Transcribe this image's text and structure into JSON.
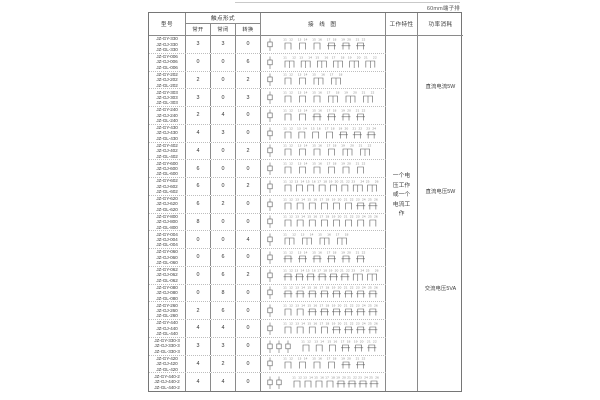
{
  "page": {
    "top_note": "60mm端子排"
  },
  "table": {
    "headers": {
      "model": "型号",
      "contact_form": "触点形式",
      "no": "常开",
      "nc": "常闭",
      "co": "转换",
      "wiring": "接 线 图",
      "characteristics": "工作特性",
      "power": "功率消耗"
    },
    "characteristics_note": "一个电压工作或一个电流工作",
    "power_notes": [
      "直流电流5W",
      "直流电压5W",
      "交流电压5VA"
    ],
    "wiring_legend": {
      "terminal_numbering_start": 11,
      "coil_symbol": "square-coil"
    },
    "rows": [
      {
        "models": [
          "JZ-GY-330",
          "JZ-GJ-330",
          "JZ-GL-330"
        ],
        "no": 3,
        "nc": 3,
        "co": 0,
        "coils": 1
      },
      {
        "models": [
          "JZ-GY-006",
          "JZ-GJ-006",
          "JZ-GL-006"
        ],
        "no": 0,
        "nc": 0,
        "co": 6,
        "coils": 1
      },
      {
        "models": [
          "JZ-GY-202",
          "JZ-GJ-202",
          "JZ-GL-202"
        ],
        "no": 2,
        "nc": 0,
        "co": 2,
        "coils": 1
      },
      {
        "models": [
          "JZ-GY-303",
          "JZ-GJ-303",
          "JZ-GL-303"
        ],
        "no": 3,
        "nc": 0,
        "co": 3,
        "coils": 1
      },
      {
        "models": [
          "JZ-GY-240",
          "JZ-GJ-240",
          "JZ-GL-240"
        ],
        "no": 2,
        "nc": 4,
        "co": 0,
        "coils": 1
      },
      {
        "models": [
          "JZ-GY-430",
          "JZ-GJ-430",
          "JZ-GL-430"
        ],
        "no": 4,
        "nc": 3,
        "co": 0,
        "coils": 1
      },
      {
        "models": [
          "JZ-GY-402",
          "JZ-GJ-402",
          "JZ-GL-402"
        ],
        "no": 4,
        "nc": 0,
        "co": 2,
        "coils": 1
      },
      {
        "models": [
          "JZ-GY-600",
          "JZ-GJ-600",
          "JZ-GL-600"
        ],
        "no": 6,
        "nc": 0,
        "co": 0,
        "coils": 1
      },
      {
        "models": [
          "JZ-GY-602",
          "JZ-GJ-602",
          "JZ-GL-602"
        ],
        "no": 6,
        "nc": 0,
        "co": 2,
        "coils": 1
      },
      {
        "models": [
          "JZ-GY-620",
          "JZ-GJ-620",
          "JZ-GL-620"
        ],
        "no": 6,
        "nc": 2,
        "co": 0,
        "coils": 1
      },
      {
        "models": [
          "JZ-GY-800",
          "JZ-GJ-800",
          "JZ-GL-800"
        ],
        "no": 8,
        "nc": 0,
        "co": 0,
        "coils": 1
      },
      {
        "models": [
          "JZ-GY-004",
          "JZ-GJ-004",
          "JZ-GL-004"
        ],
        "no": 0,
        "nc": 0,
        "co": 4,
        "coils": 1
      },
      {
        "models": [
          "JZ-GY-060",
          "JZ-GJ-060",
          "JZ-GL-060"
        ],
        "no": 0,
        "nc": 6,
        "co": 0,
        "coils": 1
      },
      {
        "models": [
          "JZ-GY-062",
          "JZ-GJ-062",
          "JZ-GL-062"
        ],
        "no": 0,
        "nc": 6,
        "co": 2,
        "coils": 1
      },
      {
        "models": [
          "JZ-GY-080",
          "JZ-GJ-080",
          "JZ-GL-080"
        ],
        "no": 0,
        "nc": 8,
        "co": 0,
        "coils": 1
      },
      {
        "models": [
          "JZ-GY-260",
          "JZ-GJ-260",
          "JZ-GL-260"
        ],
        "no": 2,
        "nc": 6,
        "co": 0,
        "coils": 1
      },
      {
        "models": [
          "JZ-GY-440",
          "JZ-GJ-440",
          "JZ-GL-440"
        ],
        "no": 4,
        "nc": 4,
        "co": 0,
        "coils": 1
      },
      {
        "models": [
          "JZ-GY-330-3",
          "JZ-GJ-330-3",
          "JZ-GL-330-3"
        ],
        "no": 3,
        "nc": 3,
        "co": 0,
        "coils": 3
      },
      {
        "models": [
          "JZ-GY-420",
          "JZ-GJ-420",
          "JZ-GL-420"
        ],
        "no": 4,
        "nc": 2,
        "co": 0,
        "coils": 1
      },
      {
        "models": [
          "JZ-GY-440-2",
          "JZ-GJ-440-2",
          "JZ-GL-440-2"
        ],
        "no": 4,
        "nc": 4,
        "co": 0,
        "coils": 2
      }
    ]
  },
  "colors": {
    "border": "#8a8a8a",
    "dotted_rule": "#bdbdbd",
    "text": "#3c3c3c",
    "diagram_stroke": "#5a5a5a"
  }
}
